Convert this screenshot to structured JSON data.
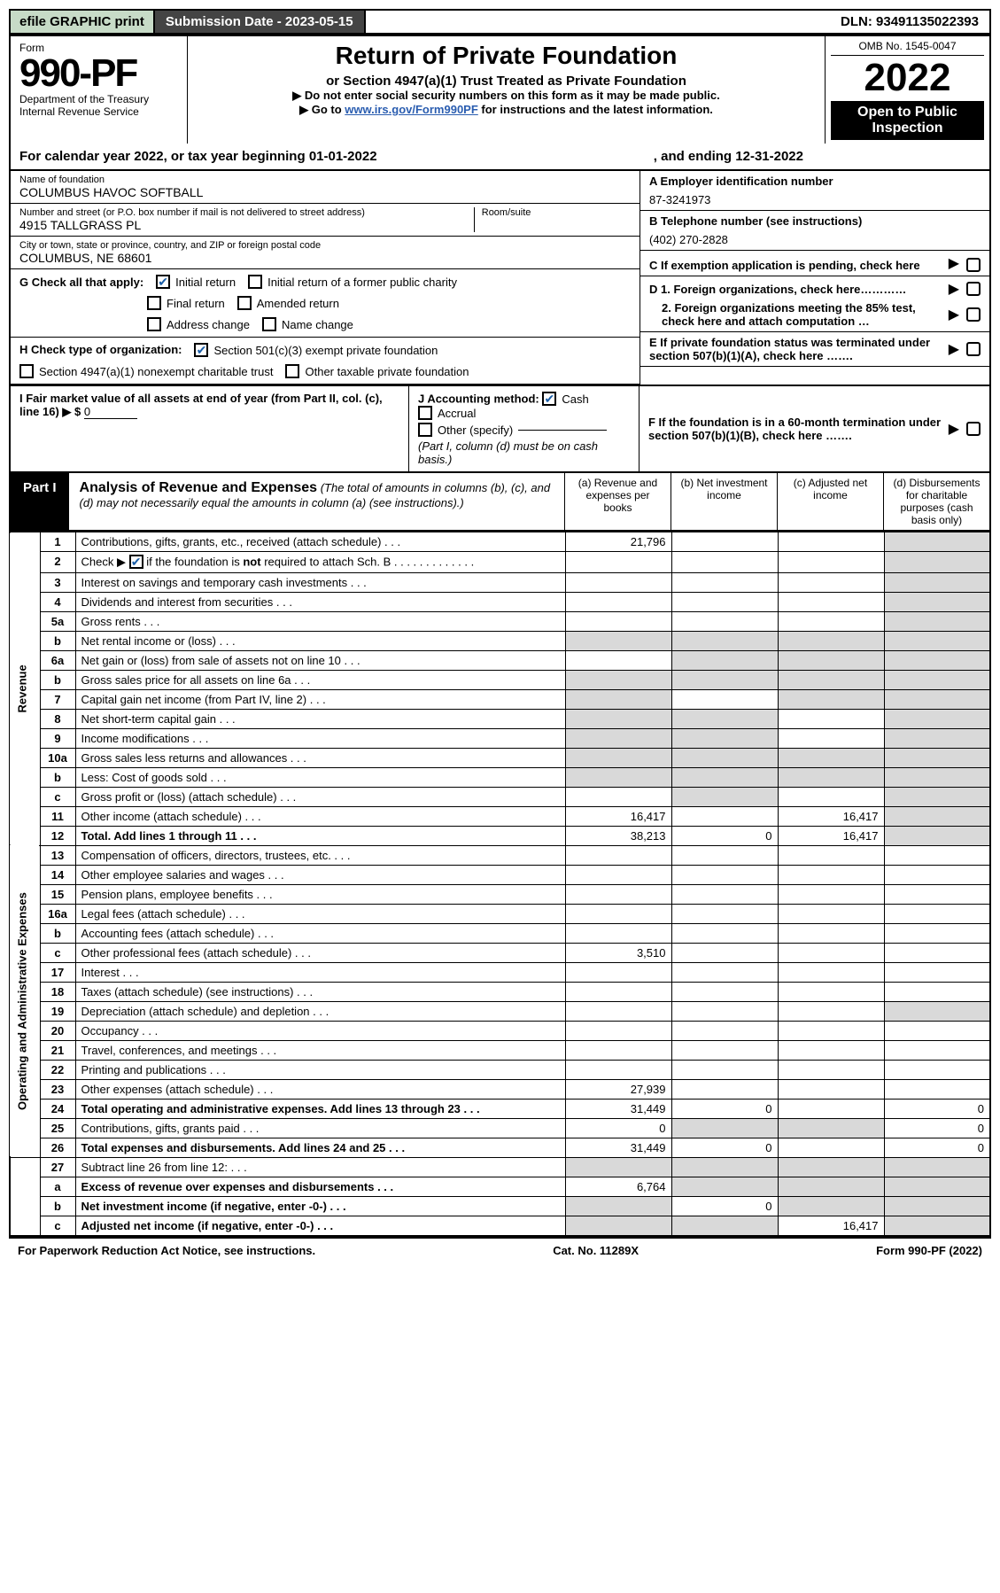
{
  "topbar": {
    "efile": "efile GRAPHIC print",
    "submission_label": "Submission Date - 2023-05-15",
    "dln": "DLN: 93491135022393"
  },
  "header": {
    "form_word": "Form",
    "form_number": "990-PF",
    "dept1": "Department of the Treasury",
    "dept2": "Internal Revenue Service",
    "title": "Return of Private Foundation",
    "subtitle": "or Section 4947(a)(1) Trust Treated as Private Foundation",
    "instr1": "▶ Do not enter social security numbers on this form as it may be made public.",
    "instr2_prefix": "▶ Go to ",
    "instr2_link": "www.irs.gov/Form990PF",
    "instr2_suffix": " for instructions and the latest information.",
    "omb": "OMB No. 1545-0047",
    "year": "2022",
    "open1": "Open to Public",
    "open2": "Inspection"
  },
  "calendar": {
    "prefix": "For calendar year 2022, or tax year beginning ",
    "begin": "01-01-2022",
    "ending_label": ", and ending ",
    "end": "12-31-2022"
  },
  "info": {
    "name_label": "Name of foundation",
    "name_val": "COLUMBUS HAVOC SOFTBALL",
    "addr_label": "Number and street (or P.O. box number if mail is not delivered to street address)",
    "addr_val": "4915 TALLGRASS PL",
    "room_label": "Room/suite",
    "room_val": "",
    "city_label": "City or town, state or province, country, and ZIP or foreign postal code",
    "city_val": "COLUMBUS, NE  68601",
    "A_label": "A Employer identification number",
    "A_val": "87-3241973",
    "B_label": "B Telephone number (see instructions)",
    "B_val": "(402) 270-2828",
    "C_label": "C If exemption application is pending, check here",
    "D1_label": "D 1. Foreign organizations, check here…………",
    "D2_label": "2. Foreign organizations meeting the 85% test, check here and attach computation …",
    "E_label": "E  If private foundation status was terminated under section 507(b)(1)(A), check here …….",
    "F_label": "F  If the foundation is in a 60-month termination under section 507(b)(1)(B), check here …….",
    "G_label": "G Check all that apply:",
    "G_opts": {
      "initial": "Initial return",
      "initial_former": "Initial return of a former public charity",
      "final": "Final return",
      "amended": "Amended return",
      "addr_change": "Address change",
      "name_change": "Name change"
    },
    "H_label": "H Check type of organization:",
    "H_opts": {
      "c3": "Section 501(c)(3) exempt private foundation",
      "4947": "Section 4947(a)(1) nonexempt charitable trust",
      "other_tax": "Other taxable private foundation"
    },
    "I_label": "I Fair market value of all assets at end of year (from Part II, col. (c), line 16) ▶ $",
    "I_val": "0",
    "J_label": "J Accounting method:",
    "J_cash": "Cash",
    "J_accrual": "Accrual",
    "J_other": "Other (specify)",
    "J_note": "(Part I, column (d) must be on cash basis.)"
  },
  "part1": {
    "label": "Part I",
    "title": "Analysis of Revenue and Expenses",
    "subtitle": "(The total of amounts in columns (b), (c), and (d) may not necessarily equal the amounts in column (a) (see instructions).)",
    "col_a": "(a)   Revenue and expenses per books",
    "col_b": "(b)   Net investment income",
    "col_c": "(c)   Adjusted net income",
    "col_d": "(d)   Disbursements for charitable purposes (cash basis only)"
  },
  "vlabels": {
    "revenue": "Revenue",
    "opex": "Operating and Administrative Expenses"
  },
  "rows": [
    {
      "n": "1",
      "desc": "Contributions, gifts, grants, etc., received (attach schedule)",
      "a": "21,796",
      "b": "",
      "c": "",
      "d": "",
      "d_grey": true
    },
    {
      "n": "2",
      "desc": "Check ▶ ☑ if the foundation is not required to attach Sch. B",
      "a": "",
      "b": "",
      "c": "",
      "d": "",
      "nb": true,
      "d_grey": true,
      "bold_not": true
    },
    {
      "n": "3",
      "desc": "Interest on savings and temporary cash investments",
      "a": "",
      "b": "",
      "c": "",
      "d": "",
      "d_grey": true
    },
    {
      "n": "4",
      "desc": "Dividends and interest from securities",
      "a": "",
      "b": "",
      "c": "",
      "d": "",
      "d_grey": true
    },
    {
      "n": "5a",
      "desc": "Gross rents",
      "a": "",
      "b": "",
      "c": "",
      "d": "",
      "d_grey": true
    },
    {
      "n": "b",
      "desc": "Net rental income or (loss)",
      "a": "",
      "b": "",
      "c": "",
      "d": "",
      "inline": true,
      "grey_all": true
    },
    {
      "n": "6a",
      "desc": "Net gain or (loss) from sale of assets not on line 10",
      "a": "",
      "b": "",
      "c": "",
      "d": "",
      "grey_bcd": true
    },
    {
      "n": "b",
      "desc": "Gross sales price for all assets on line 6a",
      "a": "",
      "b": "",
      "c": "",
      "d": "",
      "inline": true,
      "grey_all": true
    },
    {
      "n": "7",
      "desc": "Capital gain net income (from Part IV, line 2)",
      "a": "",
      "b": "",
      "c": "",
      "d": "",
      "grey_a": true,
      "grey_cd": true
    },
    {
      "n": "8",
      "desc": "Net short-term capital gain",
      "a": "",
      "b": "",
      "c": "",
      "d": "",
      "grey_a": true,
      "grey_bd": true
    },
    {
      "n": "9",
      "desc": "Income modifications",
      "a": "",
      "b": "",
      "c": "",
      "d": "",
      "grey_a": true,
      "grey_bd": true
    },
    {
      "n": "10a",
      "desc": "Gross sales less returns and allowances",
      "a": "",
      "b": "",
      "c": "",
      "d": "",
      "inline": true,
      "grey_all": true
    },
    {
      "n": "b",
      "desc": "Less: Cost of goods sold",
      "a": "",
      "b": "",
      "c": "",
      "d": "",
      "inline": true,
      "grey_all": true
    },
    {
      "n": "c",
      "desc": "Gross profit or (loss) (attach schedule)",
      "a": "",
      "b": "",
      "c": "",
      "d": "",
      "grey_bd": true
    },
    {
      "n": "11",
      "desc": "Other income (attach schedule)",
      "a": "16,417",
      "b": "",
      "c": "16,417",
      "d": "",
      "d_grey": true
    },
    {
      "n": "12",
      "desc": "Total. Add lines 1 through 11",
      "a": "38,213",
      "b": "0",
      "c": "16,417",
      "d": "",
      "bold": true,
      "d_grey": true
    },
    {
      "n": "13",
      "desc": "Compensation of officers, directors, trustees, etc.",
      "a": "",
      "b": "",
      "c": "",
      "d": ""
    },
    {
      "n": "14",
      "desc": "Other employee salaries and wages",
      "a": "",
      "b": "",
      "c": "",
      "d": ""
    },
    {
      "n": "15",
      "desc": "Pension plans, employee benefits",
      "a": "",
      "b": "",
      "c": "",
      "d": ""
    },
    {
      "n": "16a",
      "desc": "Legal fees (attach schedule)",
      "a": "",
      "b": "",
      "c": "",
      "d": ""
    },
    {
      "n": "b",
      "desc": "Accounting fees (attach schedule)",
      "a": "",
      "b": "",
      "c": "",
      "d": ""
    },
    {
      "n": "c",
      "desc": "Other professional fees (attach schedule)",
      "a": "3,510",
      "b": "",
      "c": "",
      "d": ""
    },
    {
      "n": "17",
      "desc": "Interest",
      "a": "",
      "b": "",
      "c": "",
      "d": ""
    },
    {
      "n": "18",
      "desc": "Taxes (attach schedule) (see instructions)",
      "a": "",
      "b": "",
      "c": "",
      "d": ""
    },
    {
      "n": "19",
      "desc": "Depreciation (attach schedule) and depletion",
      "a": "",
      "b": "",
      "c": "",
      "d": "",
      "d_grey": true
    },
    {
      "n": "20",
      "desc": "Occupancy",
      "a": "",
      "b": "",
      "c": "",
      "d": ""
    },
    {
      "n": "21",
      "desc": "Travel, conferences, and meetings",
      "a": "",
      "b": "",
      "c": "",
      "d": ""
    },
    {
      "n": "22",
      "desc": "Printing and publications",
      "a": "",
      "b": "",
      "c": "",
      "d": ""
    },
    {
      "n": "23",
      "desc": "Other expenses (attach schedule)",
      "a": "27,939",
      "b": "",
      "c": "",
      "d": ""
    },
    {
      "n": "24",
      "desc": "Total operating and administrative expenses. Add lines 13 through 23",
      "a": "31,449",
      "b": "0",
      "c": "",
      "d": "0",
      "bold": true
    },
    {
      "n": "25",
      "desc": "Contributions, gifts, grants paid",
      "a": "0",
      "b": "",
      "c": "",
      "d": "0",
      "grey_bc": true
    },
    {
      "n": "26",
      "desc": "Total expenses and disbursements. Add lines 24 and 25",
      "a": "31,449",
      "b": "0",
      "c": "",
      "d": "0",
      "bold": true
    },
    {
      "n": "27",
      "desc": "Subtract line 26 from line 12:",
      "a": "",
      "b": "",
      "c": "",
      "d": "",
      "grey_all": true
    },
    {
      "n": "a",
      "desc": "Excess of revenue over expenses and disbursements",
      "a": "6,764",
      "b": "",
      "c": "",
      "d": "",
      "bold": true,
      "grey_bcd": true
    },
    {
      "n": "b",
      "desc": "Net investment income (if negative, enter -0-)",
      "a": "",
      "b": "0",
      "c": "",
      "d": "",
      "bold": true,
      "grey_a": true,
      "grey_cd": true
    },
    {
      "n": "c",
      "desc": "Adjusted net income (if negative, enter -0-)",
      "a": "",
      "b": "",
      "c": "16,417",
      "d": "",
      "bold": true,
      "grey_a": true,
      "grey_bd": true
    }
  ],
  "footer": {
    "left": "For Paperwork Reduction Act Notice, see instructions.",
    "mid": "Cat. No. 11289X",
    "right": "Form 990-PF (2022)"
  },
  "colors": {
    "header_green": "#c7dbc7",
    "dark": "#444444",
    "link": "#2a5db0",
    "grey_cell": "#d9d9d9",
    "check_blue": "#1a5ea8"
  }
}
